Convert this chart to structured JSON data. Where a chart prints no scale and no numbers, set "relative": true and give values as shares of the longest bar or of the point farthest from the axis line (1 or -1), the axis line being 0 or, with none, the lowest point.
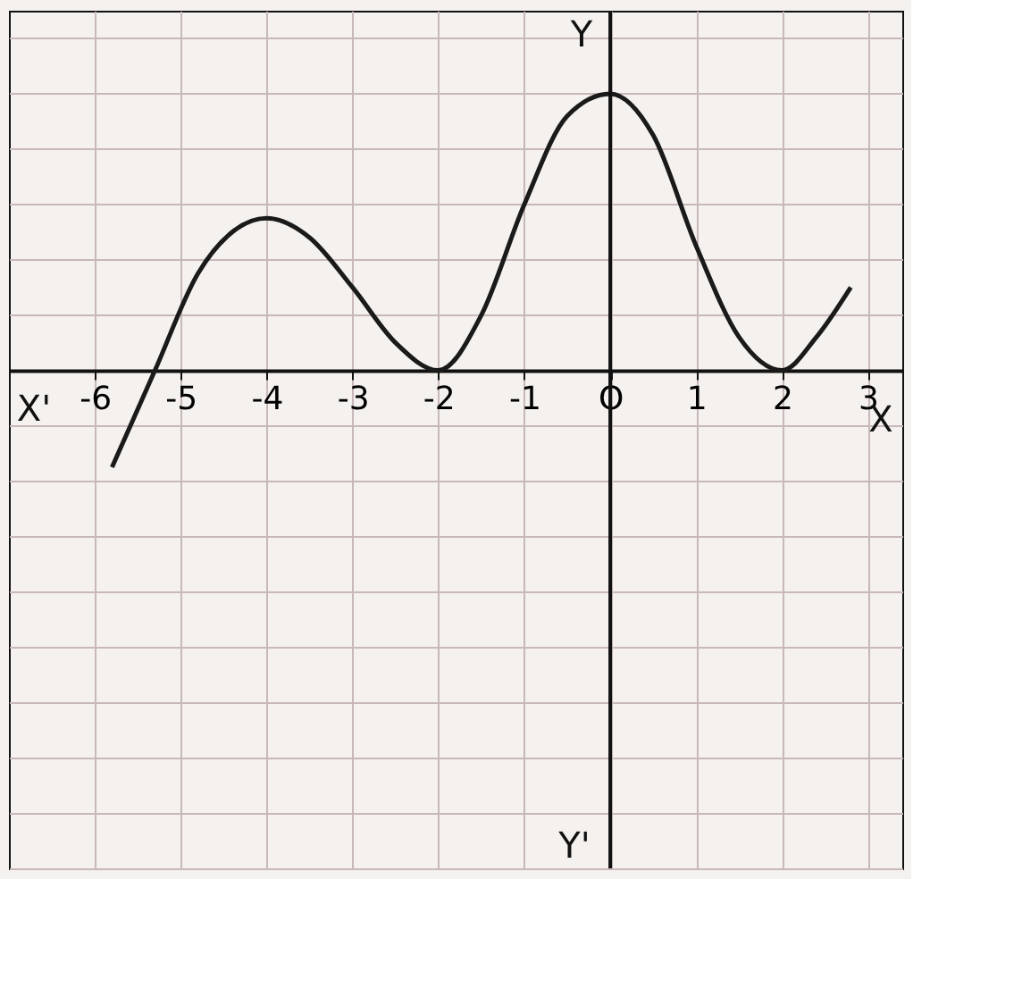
{
  "chart_data": {
    "type": "line",
    "relative": true,
    "x": [
      -5.8,
      -5.3,
      -4.8,
      -4.4,
      -4,
      -3.5,
      -3,
      -2.5,
      -2,
      -1.5,
      -1,
      -0.5,
      0,
      0.5,
      1,
      1.5,
      2,
      2.4,
      2.8
    ],
    "series": [
      {
        "color": "#1a1a1a",
        "values": [
          -0.35,
          0,
          0.35,
          0.5,
          0.55,
          0.48,
          0.3,
          0.1,
          0,
          0.2,
          0.6,
          0.92,
          1,
          0.85,
          0.45,
          0.12,
          0,
          0.12,
          0.3
        ]
      }
    ],
    "xlim": [
      -7,
      3.4
    ],
    "xticks": [
      -6,
      -5,
      -4,
      -3,
      -2,
      -1,
      {
        "value": 0,
        "label": "O"
      },
      1,
      2,
      3
    ],
    "annotations": [
      "X'",
      "X",
      "Y",
      "Y'"
    ],
    "grid": true,
    "marker": "none",
    "line_style": "solid"
  }
}
